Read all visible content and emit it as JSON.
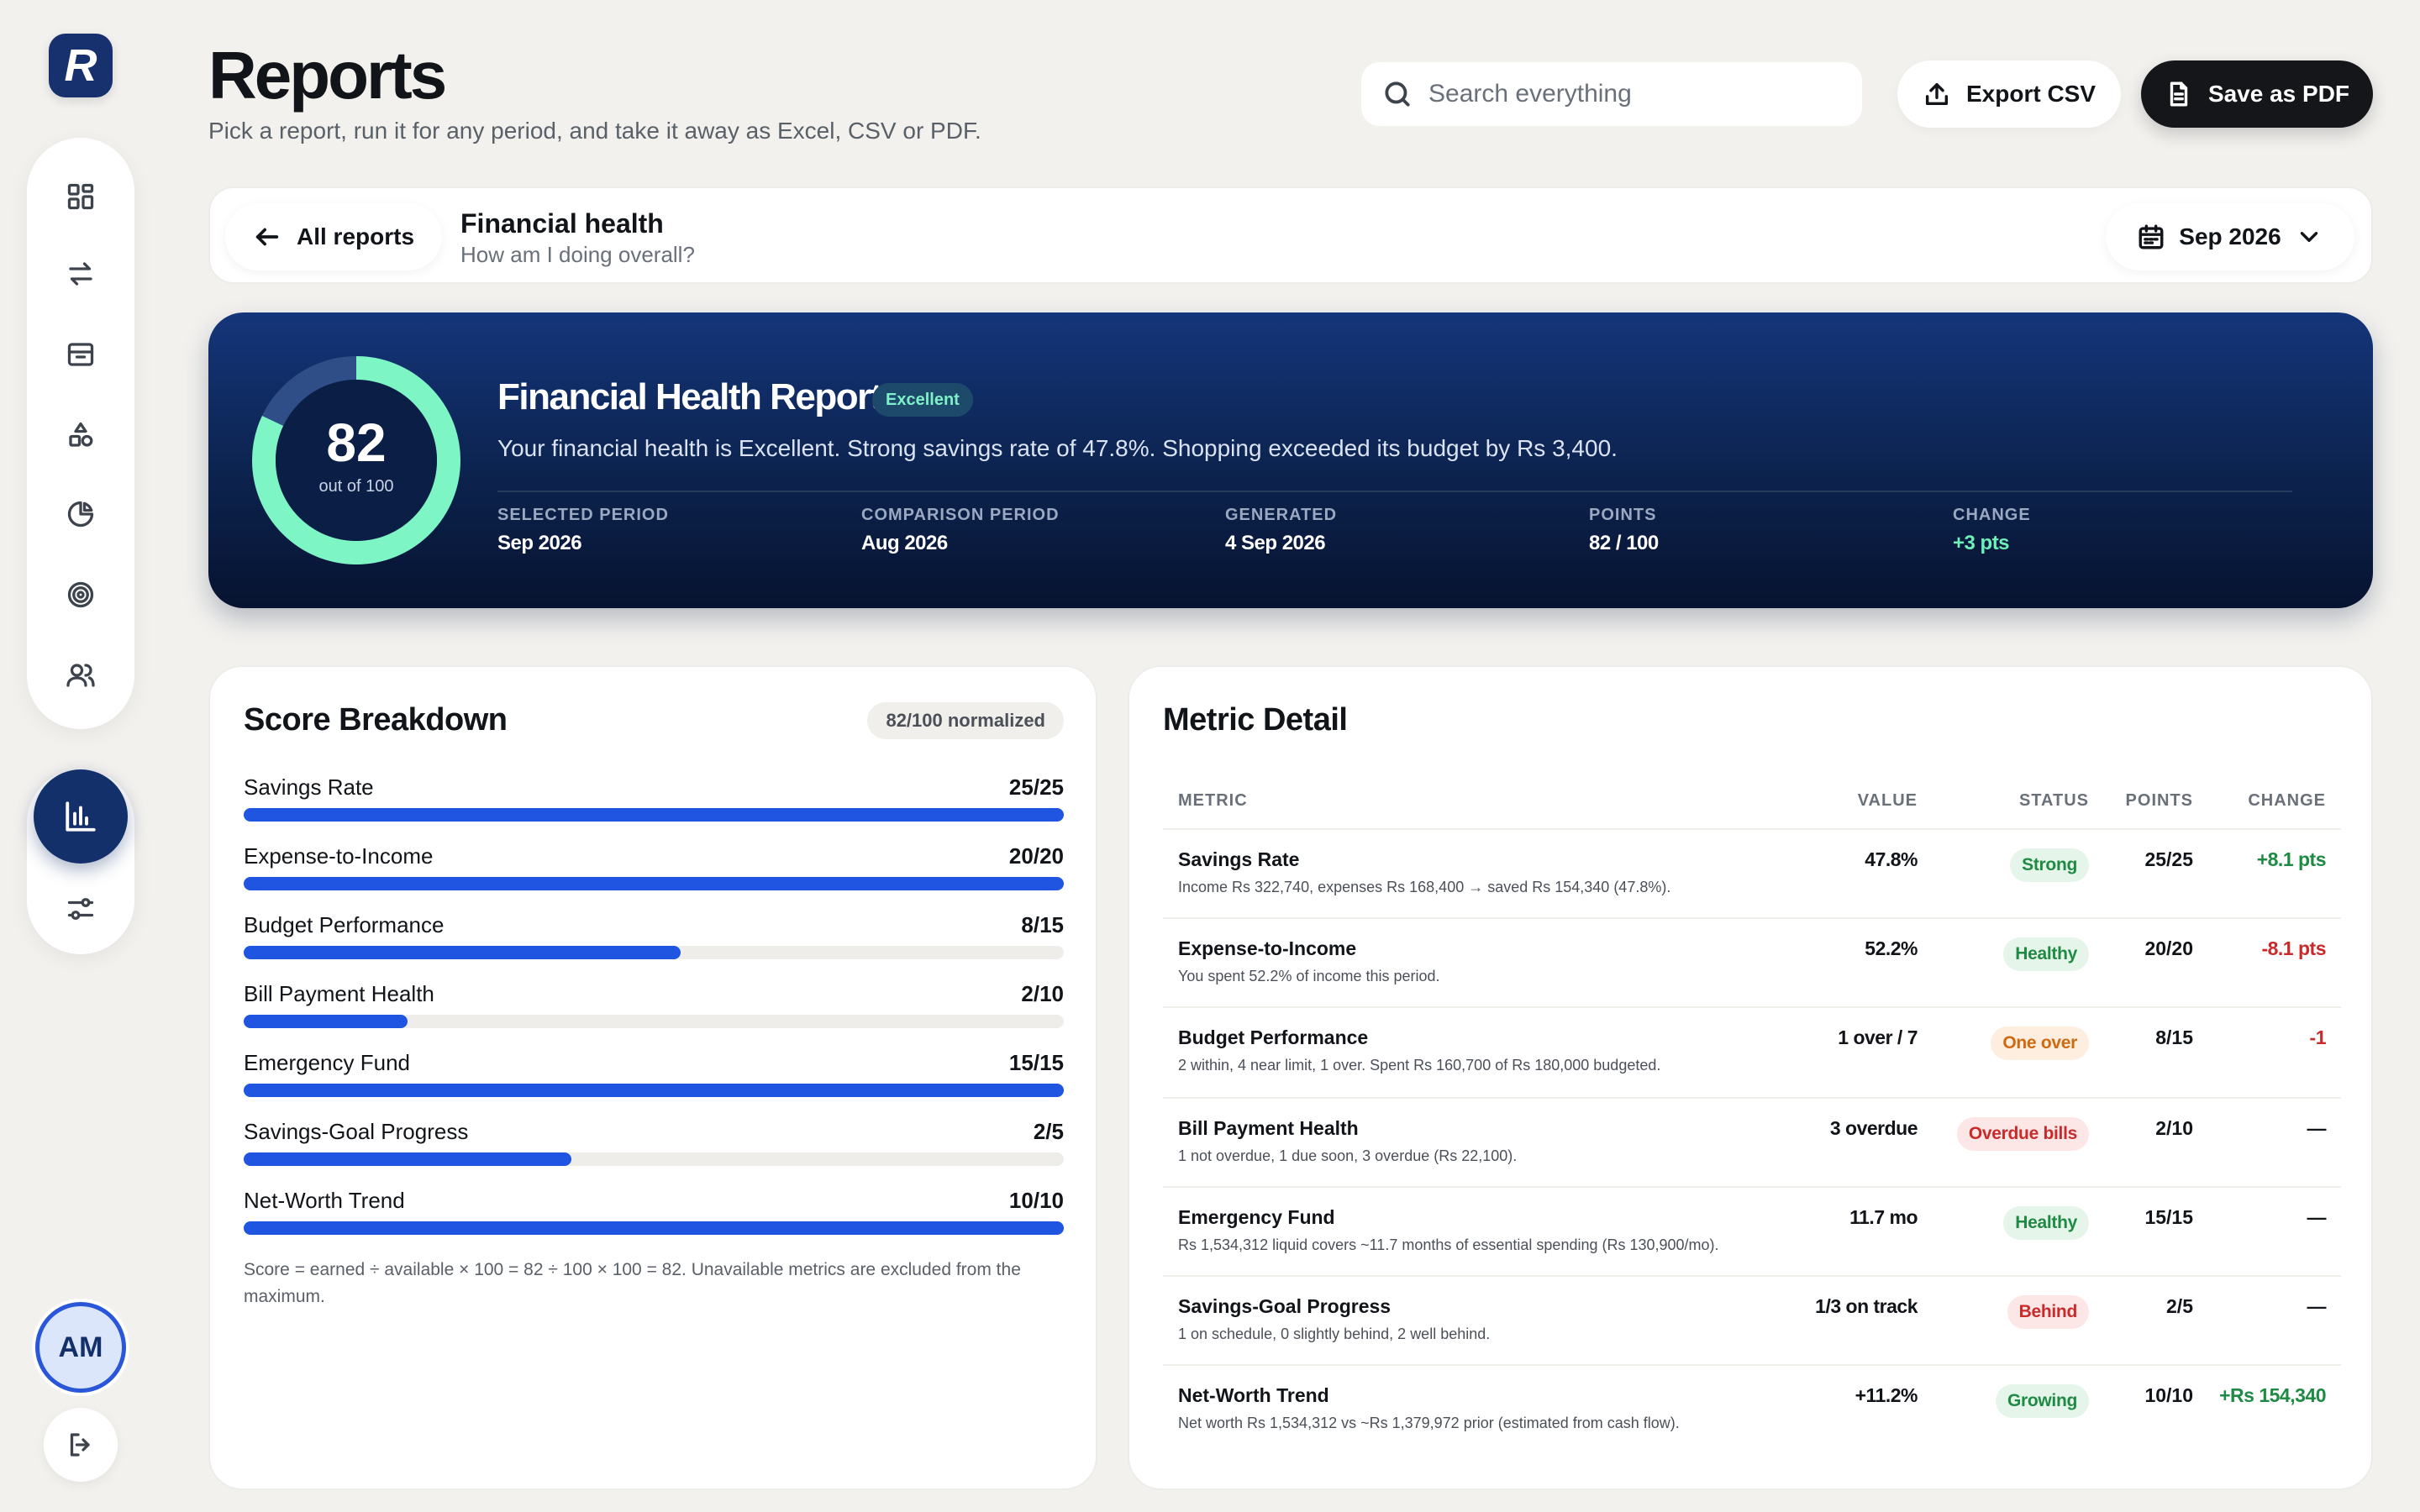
{
  "app": {
    "logo_letter": "R",
    "avatar_initials": "AM"
  },
  "sidebar": {
    "items": [
      {
        "icon": "dashboard-grid-icon"
      },
      {
        "icon": "transfer-arrows-icon"
      },
      {
        "icon": "inbox-tray-icon"
      },
      {
        "icon": "shapes-categories-icon"
      },
      {
        "icon": "pie-chart-icon"
      },
      {
        "icon": "target-goal-icon"
      },
      {
        "icon": "users-icon"
      }
    ],
    "bottom_items": [
      {
        "icon": "bar-chart-icon",
        "active": true
      },
      {
        "icon": "sliders-settings-icon"
      }
    ],
    "logout_icon": "logout-icon"
  },
  "header": {
    "title": "Reports",
    "subtitle": "Pick a report, run it for any period, and take it away as Excel, CSV or PDF.",
    "search_placeholder": "Search everything",
    "export_csv_label": "Export CSV",
    "save_pdf_label": "Save as PDF"
  },
  "report_bar": {
    "back_label": "All reports",
    "report_name": "Financial health",
    "report_question": "How am I doing overall?",
    "period": "Sep 2026"
  },
  "hero": {
    "score": "82",
    "score_fraction": 0.82,
    "score_caption": "out of 100",
    "title": "Financial Health Report",
    "badge": "Excellent",
    "summary": "Your financial health is Excellent. Strong savings rate of 47.8%. Shopping exceeded its budget by Rs 3,400.",
    "stats": [
      {
        "label": "SELECTED PERIOD",
        "value": "Sep 2026"
      },
      {
        "label": "COMPARISON PERIOD",
        "value": "Aug 2026"
      },
      {
        "label": "GENERATED",
        "value": "4 Sep 2026"
      },
      {
        "label": "POINTS",
        "value": "82 / 100"
      },
      {
        "label": "CHANGE",
        "value": "+3 pts"
      }
    ],
    "colors": {
      "ring": "#7ef5c4",
      "ring_track": "#2f4d86",
      "positive": "#6ff0b8"
    }
  },
  "breakdown": {
    "title": "Score Breakdown",
    "badge": "82/100 normalized",
    "items": [
      {
        "label": "Savings Rate",
        "score": "25/25",
        "fraction": 1.0
      },
      {
        "label": "Expense-to-Income",
        "score": "20/20",
        "fraction": 1.0
      },
      {
        "label": "Budget Performance",
        "score": "8/15",
        "fraction": 0.533
      },
      {
        "label": "Bill Payment Health",
        "score": "2/10",
        "fraction": 0.2
      },
      {
        "label": "Emergency Fund",
        "score": "15/15",
        "fraction": 1.0
      },
      {
        "label": "Savings-Goal Progress",
        "score": "2/5",
        "fraction": 0.4
      },
      {
        "label": "Net-Worth Trend",
        "score": "10/10",
        "fraction": 1.0
      }
    ],
    "note": "Score = earned ÷ available × 100 = 82 ÷ 100 × 100 = 82. Unavailable metrics are excluded from the maximum."
  },
  "metrics": {
    "title": "Metric Detail",
    "columns": [
      "METRIC",
      "VALUE",
      "STATUS",
      "POINTS",
      "CHANGE"
    ],
    "rows": [
      {
        "name": "Savings Rate",
        "desc": "Income Rs 322,740, expenses Rs 168,400 → saved Rs 154,340 (47.8%).",
        "value": "47.8%",
        "status": "Strong",
        "status_tone": "green",
        "points": "25/25",
        "change": "+8.1 pts",
        "change_tone": "pos"
      },
      {
        "name": "Expense-to-Income",
        "desc": "You spent 52.2% of income this period.",
        "value": "52.2%",
        "status": "Healthy",
        "status_tone": "green",
        "points": "20/20",
        "change": "-8.1 pts",
        "change_tone": "neg"
      },
      {
        "name": "Budget Performance",
        "desc": "2 within, 4 near limit, 1 over. Spent Rs 160,700 of Rs 180,000 budgeted.",
        "value": "1 over / 7",
        "status": "One over",
        "status_tone": "orange",
        "points": "8/15",
        "change": "-1",
        "change_tone": "neg"
      },
      {
        "name": "Bill Payment Health",
        "desc": "1 not overdue, 1 due soon, 3 overdue (Rs 22,100).",
        "value": "3 overdue",
        "status": "Overdue bills",
        "status_tone": "red",
        "points": "2/10",
        "change": "—",
        "change_tone": "neu"
      },
      {
        "name": "Emergency Fund",
        "desc": "Rs 1,534,312 liquid covers ~11.7 months of essential spending (Rs 130,900/mo).",
        "value": "11.7 mo",
        "status": "Healthy",
        "status_tone": "green",
        "points": "15/15",
        "change": "—",
        "change_tone": "neu"
      },
      {
        "name": "Savings-Goal Progress",
        "desc": "1 on schedule, 0 slightly behind, 2 well behind.",
        "value": "1/3 on track",
        "status": "Behind",
        "status_tone": "red",
        "points": "2/5",
        "change": "—",
        "change_tone": "neu"
      },
      {
        "name": "Net-Worth Trend",
        "desc": "Net worth Rs 1,534,312 vs ~Rs 1,379,972 prior (estimated from cash flow).",
        "value": "+11.2%",
        "status": "Growing",
        "status_tone": "green",
        "points": "10/10",
        "change": "+Rs 154,340",
        "change_tone": "pos"
      }
    ]
  }
}
